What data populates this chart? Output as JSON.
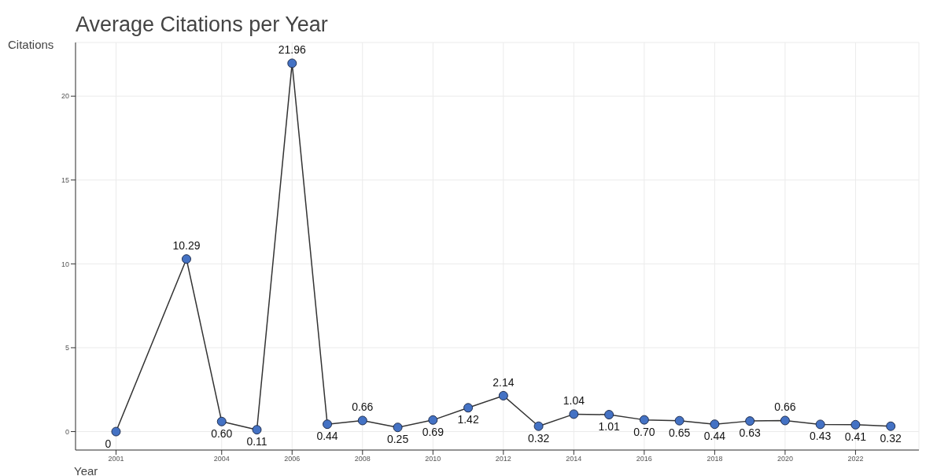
{
  "chart_data": {
    "type": "line",
    "title": "Average Citations per Year",
    "xlabel": "Year",
    "ylabel": "Citations",
    "x": [
      2001,
      2003,
      2004,
      2005,
      2006,
      2007,
      2008,
      2009,
      2010,
      2011,
      2012,
      2013,
      2014,
      2015,
      2016,
      2017,
      2018,
      2019,
      2020,
      2021,
      2022,
      2023
    ],
    "series": [
      {
        "color": "#4472c4",
        "values": [
          0,
          10.29,
          0.6,
          0.11,
          21.96,
          0.44,
          0.66,
          0.25,
          0.69,
          1.42,
          2.14,
          0.32,
          1.04,
          1.01,
          0.7,
          0.65,
          0.44,
          0.63,
          0.66,
          0.43,
          0.41,
          0.32
        ],
        "value_labels": [
          "0",
          "10.29",
          "0.60",
          "0.11",
          "21.96",
          "0.44",
          "0.66",
          "0.25",
          "0.69",
          "1.42",
          "2.14",
          "0.32",
          "1.04",
          "1.01",
          "0.70",
          "0.65",
          "0.44",
          "0.63",
          "0.66",
          "0.43",
          "0.41",
          "0.32"
        ]
      }
    ],
    "xlim": [
      1999.85,
      2023.8
    ],
    "xticks": [
      2001,
      2004,
      2006,
      2008,
      2010,
      2012,
      2014,
      2016,
      2018,
      2020,
      2022
    ],
    "ylim": [
      -1.1,
      23.2
    ],
    "yticks": [
      0,
      5,
      10,
      15,
      20
    ],
    "grid": true,
    "marker": "circle",
    "line_style": "solid",
    "legend": false
  }
}
